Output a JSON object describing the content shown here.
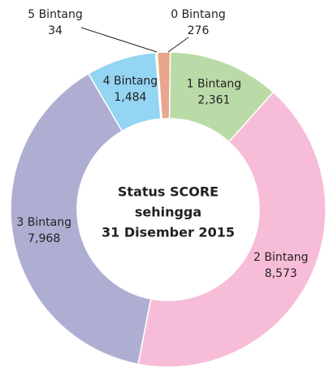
{
  "chart_data": {
    "type": "donut",
    "title": [
      "Status SCORE",
      "sehingga",
      "31 Disember 2015"
    ],
    "categories": [
      "0 Bintang",
      "1 Bintang",
      "2 Bintang",
      "3 Bintang",
      "4 Bintang",
      "5 Bintang"
    ],
    "values": [
      276,
      2361,
      8573,
      7968,
      1484,
      34
    ],
    "value_labels": [
      "276",
      "2,361",
      "8,573",
      "7,968",
      "1,484",
      "34"
    ],
    "colors": [
      "#e9a58d",
      "#badba7",
      "#f7bdd8",
      "#aeaed3",
      "#93d5f2",
      "#f5e92a"
    ]
  }
}
